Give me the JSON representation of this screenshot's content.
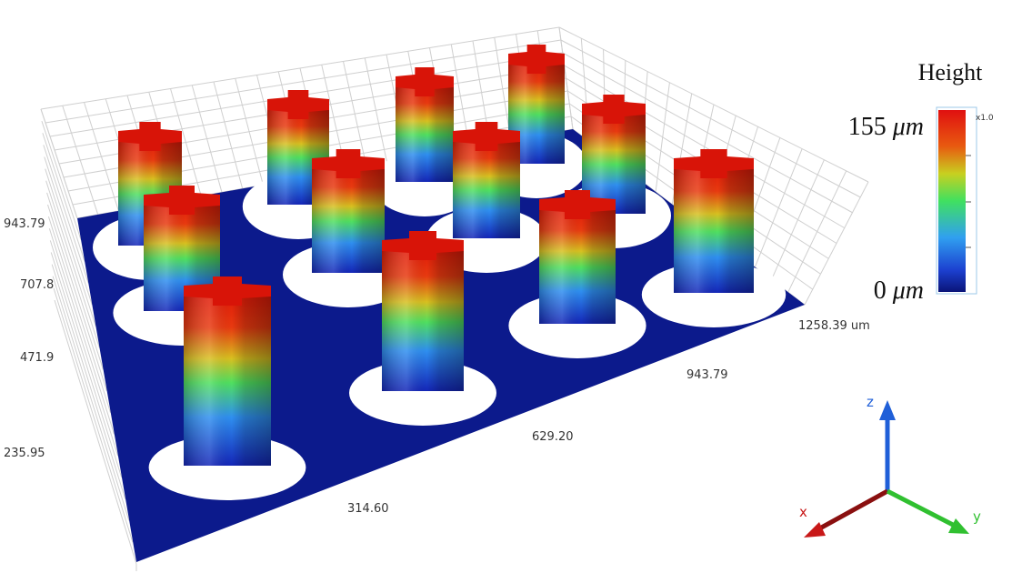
{
  "colorbar": {
    "title": "Height",
    "max": "155",
    "min": "0",
    "unit": "μm",
    "scale": "x1.0"
  },
  "axes": {
    "left_ticks": [
      "943.79",
      "707.8",
      "471.9",
      "235.95"
    ],
    "front_ticks": [
      "314.60",
      "629.20",
      "943.79",
      "1258.39 um"
    ]
  },
  "triad": {
    "z": "z",
    "x": "x",
    "y": "y"
  }
}
